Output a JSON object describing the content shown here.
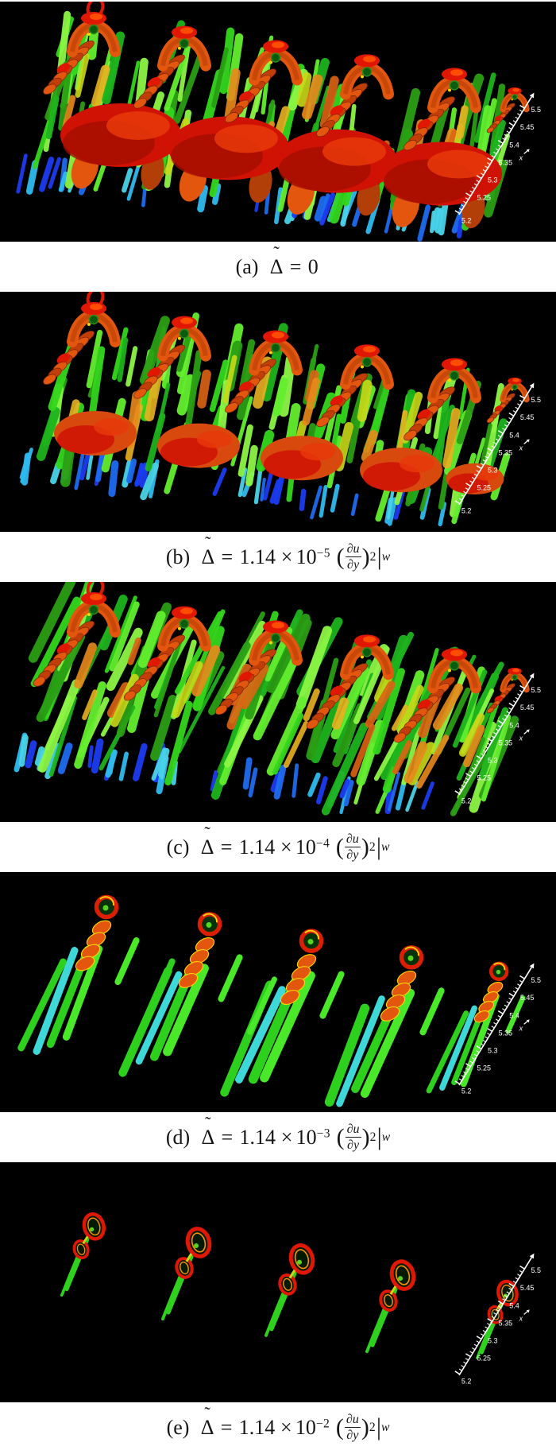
{
  "figure": {
    "background": "#ffffff",
    "panel_background": "#000000",
    "caption_color": "#161616",
    "axis": {
      "tick_labels": [
        "5.2",
        "5.25",
        "5.3",
        "5.35",
        "5.4",
        "5.45",
        "5.5"
      ],
      "axis_label": "x",
      "color": "#ffffff"
    },
    "palette": {
      "greens": [
        "#1db31d",
        "#34d61c",
        "#63ee2e",
        "#8cf545",
        "#2a9e14"
      ],
      "warm": [
        "#e8b121",
        "#e8881c",
        "#dd6414",
        "#c8d818"
      ],
      "blues": [
        "#1b3bf0",
        "#2fb9ee",
        "#1e6cf0",
        "#49d2e8"
      ],
      "cap": "#e01702",
      "blob": "#cf1203",
      "blob_dark": "#a30e00",
      "blob_mid": "#e8380a",
      "arch": "#e2560e",
      "arch_dark": "#b23e08",
      "rib_a": "#e2560e",
      "rib_b": "#c23e08",
      "rib_edge": "#7a2405",
      "head_green": "#0c5c10",
      "yellow": "#ffd700",
      "cyan_blade": "#3fd8d8",
      "blade_green_a": "#2ed01e",
      "blade_green_b": "#49e829",
      "tail_green": "#2fd01e",
      "ring_inner_orange": "#ff9100",
      "fleck_green": "#58d41e"
    },
    "panels": [
      {
        "id": "a",
        "scene": "dense-blobs",
        "caption": {
          "label": "(a)",
          "tilde": "˜",
          "symbol": "Δ",
          "equals": "=",
          "value": "0"
        }
      },
      {
        "id": "b",
        "scene": "dense-broken-blobs",
        "caption": {
          "label": "(b)",
          "tilde": "˜",
          "symbol": "Δ",
          "equals": "=",
          "coefficient": "1.14",
          "times": "×",
          "base": "10",
          "exponent": "−5",
          "term": {
            "open": "(",
            "numerator": "∂u",
            "denominator": "∂y",
            "close": ")",
            "power": "2",
            "bar": "|",
            "subscript": "w"
          }
        }
      },
      {
        "id": "c",
        "scene": "diagonal-streaks",
        "caption": {
          "label": "(c)",
          "tilde": "˜",
          "symbol": "Δ",
          "equals": "=",
          "coefficient": "1.14",
          "times": "×",
          "base": "10",
          "exponent": "−4",
          "term": {
            "open": "(",
            "numerator": "∂u",
            "denominator": "∂y",
            "close": ")",
            "power": "2",
            "bar": "|",
            "subscript": "w"
          }
        }
      },
      {
        "id": "d",
        "scene": "sparse-blades",
        "caption": {
          "label": "(d)",
          "tilde": "˜",
          "symbol": "Δ",
          "equals": "=",
          "coefficient": "1.14",
          "times": "×",
          "base": "10",
          "exponent": "−3",
          "term": {
            "open": "(",
            "numerator": "∂u",
            "denominator": "∂y",
            "close": ")",
            "power": "2",
            "bar": "|",
            "subscript": "w"
          }
        }
      },
      {
        "id": "e",
        "scene": "isolated-hairpins",
        "caption": {
          "label": "(e)",
          "tilde": "˜",
          "symbol": "Δ",
          "equals": "=",
          "coefficient": "1.14",
          "times": "×",
          "base": "10",
          "exponent": "−2",
          "term": {
            "open": "(",
            "numerator": "∂u",
            "denominator": "∂y",
            "close": ")",
            "power": "2",
            "bar": "|",
            "subscript": "w"
          }
        }
      }
    ]
  }
}
